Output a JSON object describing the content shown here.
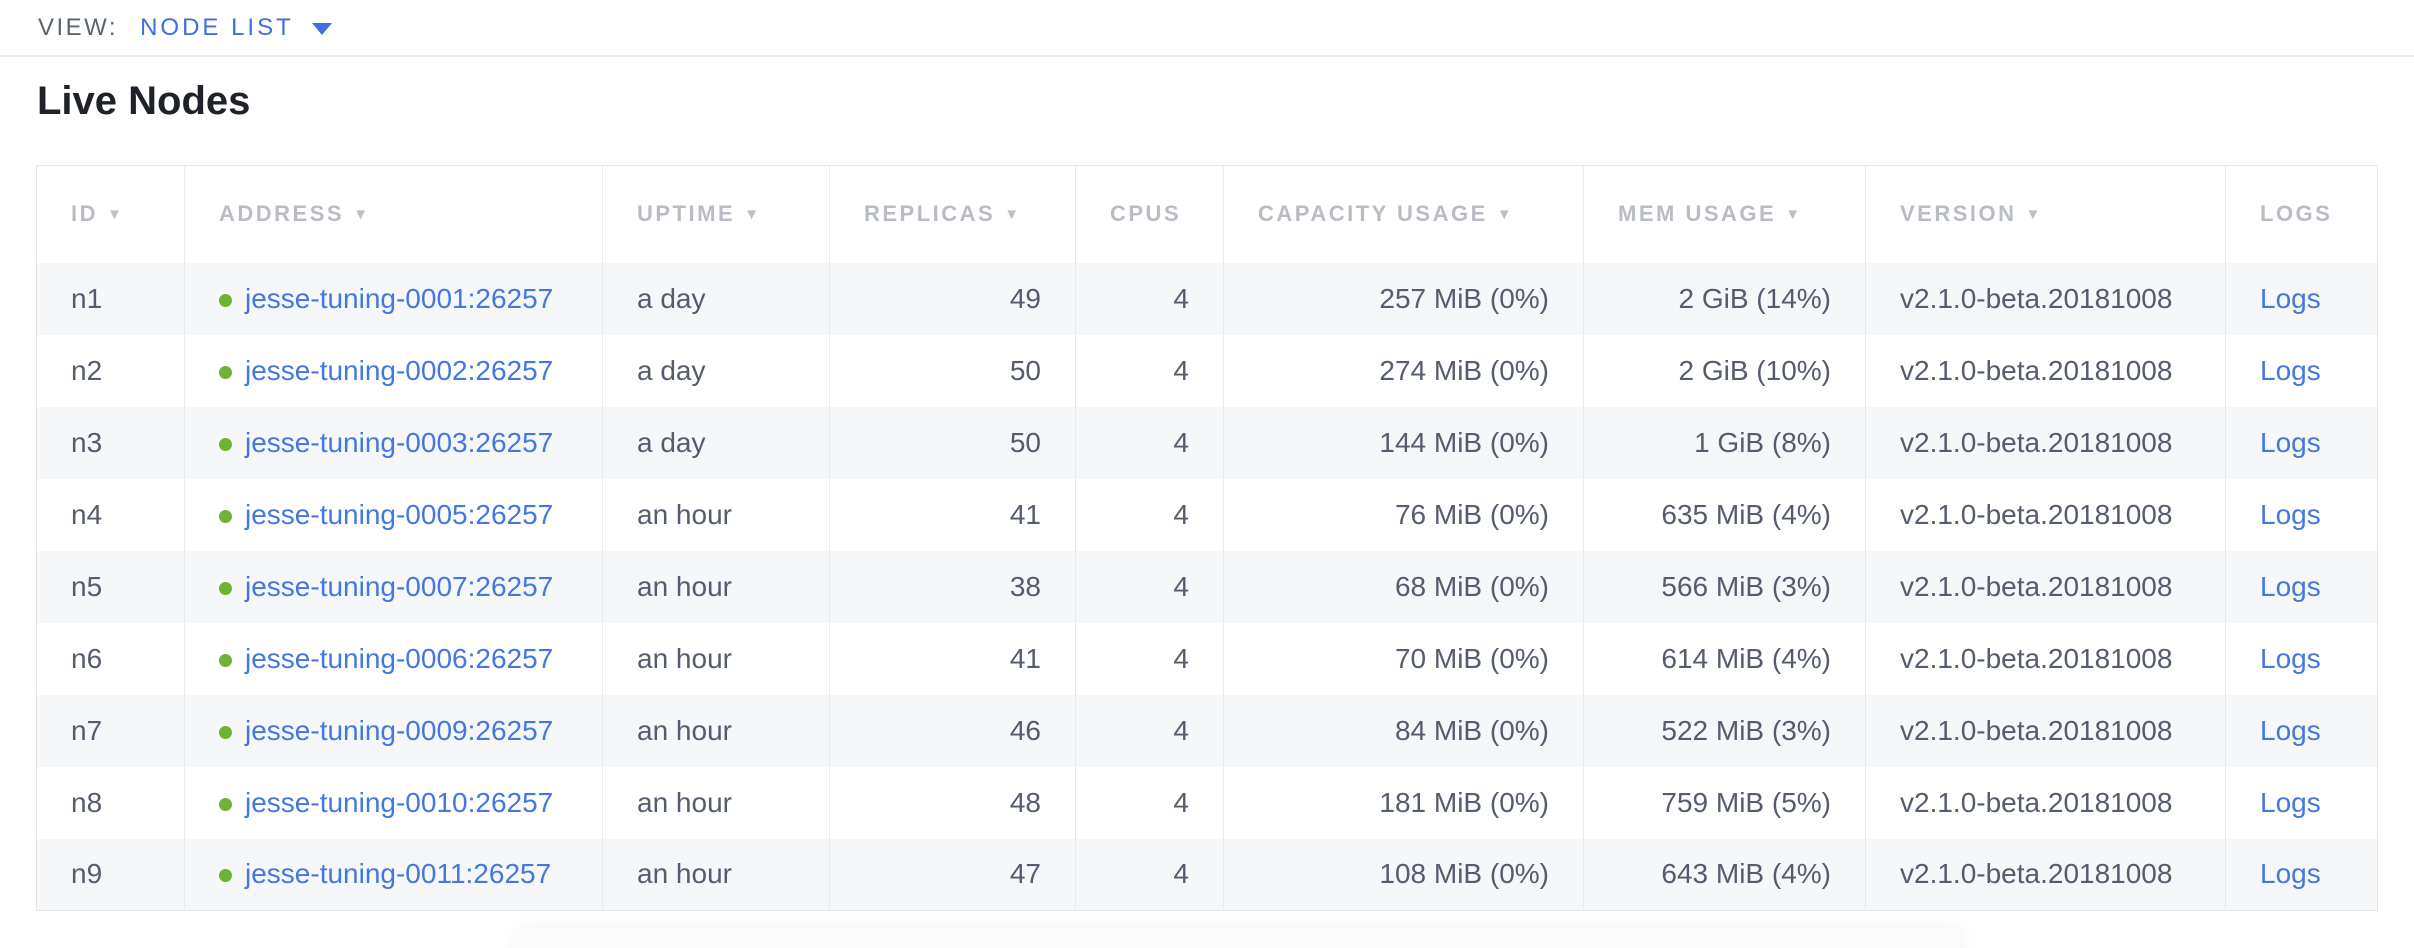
{
  "view_bar": {
    "label": "VIEW:",
    "selected": "NODE LIST"
  },
  "page": {
    "title": "Live Nodes"
  },
  "icons": {
    "sort_arrow": "▼",
    "chevron_down": "▼",
    "status_dot": "live-green-dot"
  },
  "colors": {
    "link_blue": "#4477e0",
    "dropdown_blue": "#3e6fe0",
    "live_green": "#6db434",
    "header_gray": "#b9bdc3",
    "body_text": "#555c6e",
    "row_alt_bg": "#f6f7f8",
    "title_black": "#1f2228"
  },
  "table": {
    "columns": [
      {
        "key": "id",
        "label": "ID",
        "sortable": true,
        "align": "left"
      },
      {
        "key": "address",
        "label": "ADDRESS",
        "sortable": true,
        "align": "left"
      },
      {
        "key": "uptime",
        "label": "UPTIME",
        "sortable": true,
        "align": "left"
      },
      {
        "key": "replicas",
        "label": "REPLICAS",
        "sortable": true,
        "align": "right"
      },
      {
        "key": "cpus",
        "label": "CPUS",
        "sortable": false,
        "align": "right"
      },
      {
        "key": "capacity_usage",
        "label": "CAPACITY USAGE",
        "sortable": true,
        "align": "right"
      },
      {
        "key": "mem_usage",
        "label": "MEM USAGE",
        "sortable": true,
        "align": "right"
      },
      {
        "key": "version",
        "label": "VERSION",
        "sortable": true,
        "align": "left"
      },
      {
        "key": "logs",
        "label": "LOGS",
        "sortable": false,
        "align": "left"
      }
    ],
    "rows": [
      {
        "id": "n1",
        "address": "jesse-tuning-0001:26257",
        "uptime": "a day",
        "replicas": "49",
        "cpus": "4",
        "capacity_usage": "257 MiB (0%)",
        "mem_usage": "2 GiB (14%)",
        "version": "v2.1.0-beta.20181008",
        "logs": "Logs"
      },
      {
        "id": "n2",
        "address": "jesse-tuning-0002:26257",
        "uptime": "a day",
        "replicas": "50",
        "cpus": "4",
        "capacity_usage": "274 MiB (0%)",
        "mem_usage": "2 GiB (10%)",
        "version": "v2.1.0-beta.20181008",
        "logs": "Logs"
      },
      {
        "id": "n3",
        "address": "jesse-tuning-0003:26257",
        "uptime": "a day",
        "replicas": "50",
        "cpus": "4",
        "capacity_usage": "144 MiB (0%)",
        "mem_usage": "1 GiB (8%)",
        "version": "v2.1.0-beta.20181008",
        "logs": "Logs"
      },
      {
        "id": "n4",
        "address": "jesse-tuning-0005:26257",
        "uptime": "an hour",
        "replicas": "41",
        "cpus": "4",
        "capacity_usage": "76 MiB (0%)",
        "mem_usage": "635 MiB (4%)",
        "version": "v2.1.0-beta.20181008",
        "logs": "Logs"
      },
      {
        "id": "n5",
        "address": "jesse-tuning-0007:26257",
        "uptime": "an hour",
        "replicas": "38",
        "cpus": "4",
        "capacity_usage": "68 MiB (0%)",
        "mem_usage": "566 MiB (3%)",
        "version": "v2.1.0-beta.20181008",
        "logs": "Logs"
      },
      {
        "id": "n6",
        "address": "jesse-tuning-0006:26257",
        "uptime": "an hour",
        "replicas": "41",
        "cpus": "4",
        "capacity_usage": "70 MiB (0%)",
        "mem_usage": "614 MiB (4%)",
        "version": "v2.1.0-beta.20181008",
        "logs": "Logs"
      },
      {
        "id": "n7",
        "address": "jesse-tuning-0009:26257",
        "uptime": "an hour",
        "replicas": "46",
        "cpus": "4",
        "capacity_usage": "84 MiB (0%)",
        "mem_usage": "522 MiB (3%)",
        "version": "v2.1.0-beta.20181008",
        "logs": "Logs"
      },
      {
        "id": "n8",
        "address": "jesse-tuning-0010:26257",
        "uptime": "an hour",
        "replicas": "48",
        "cpus": "4",
        "capacity_usage": "181 MiB (0%)",
        "mem_usage": "759 MiB (5%)",
        "version": "v2.1.0-beta.20181008",
        "logs": "Logs"
      },
      {
        "id": "n9",
        "address": "jesse-tuning-0011:26257",
        "uptime": "an hour",
        "replicas": "47",
        "cpus": "4",
        "capacity_usage": "108 MiB (0%)",
        "mem_usage": "643 MiB (4%)",
        "version": "v2.1.0-beta.20181008",
        "logs": "Logs"
      }
    ]
  }
}
